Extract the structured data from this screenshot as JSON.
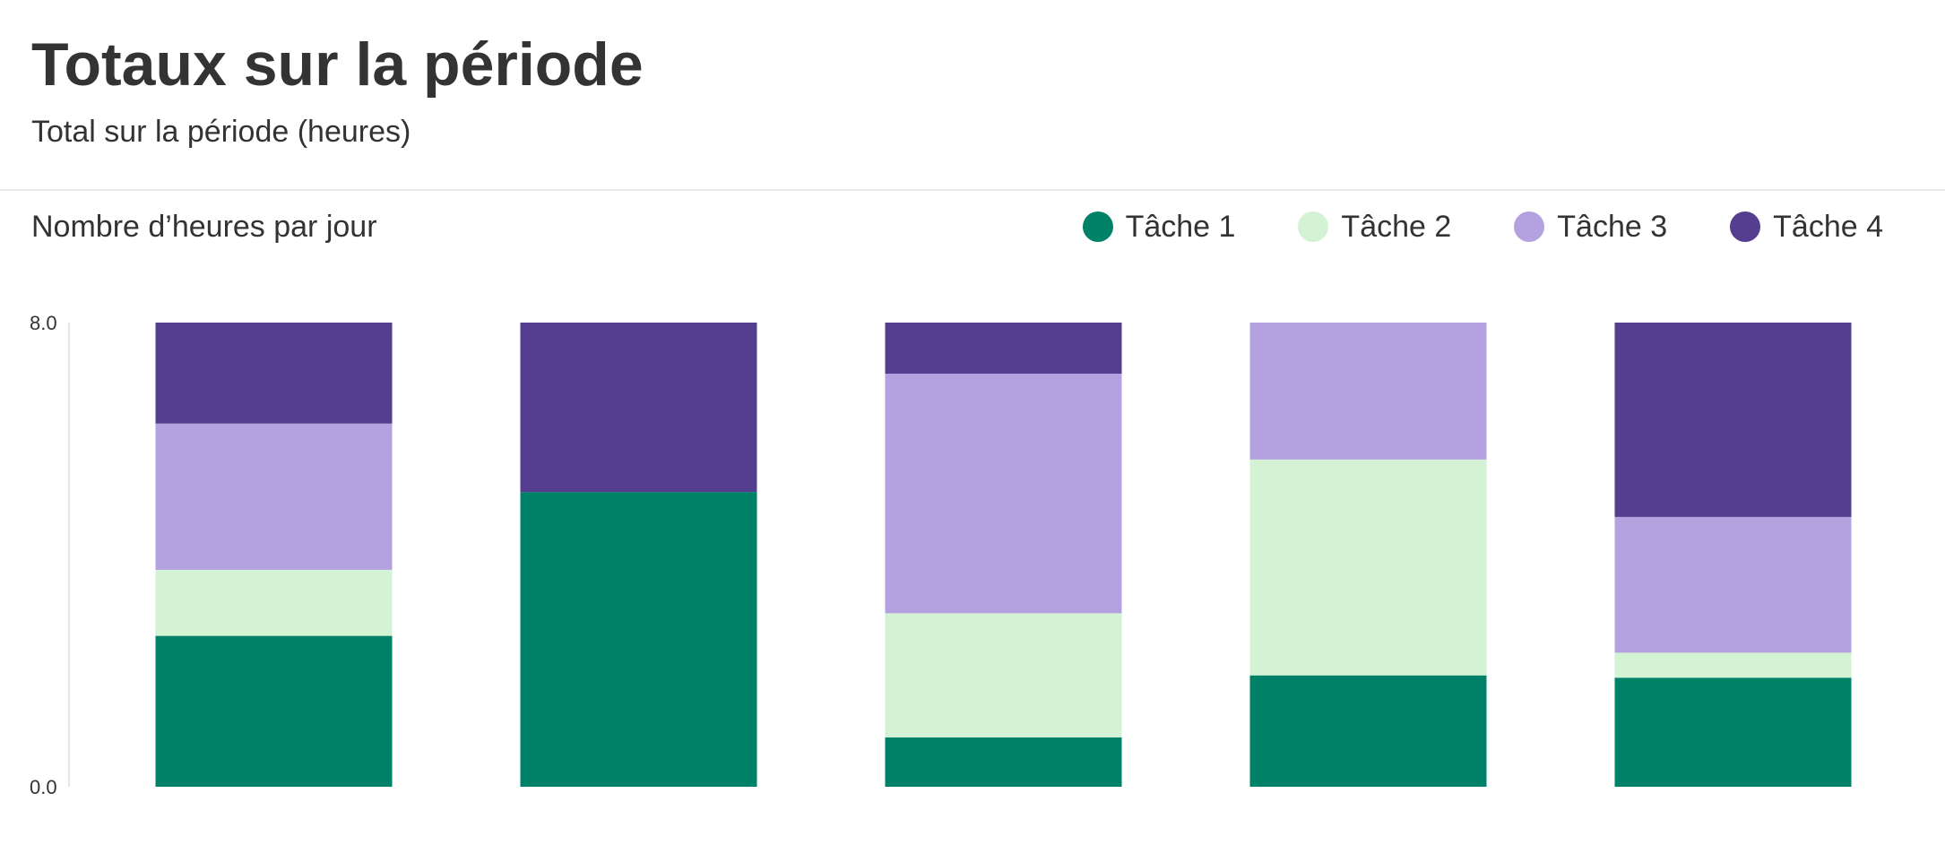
{
  "header": {
    "title": "Totaux sur la période",
    "subtitle": "Total sur la période (heures)"
  },
  "chart_data": {
    "type": "bar",
    "stacked": true,
    "title": "Nombre d’heures par jour",
    "xlabel": "",
    "ylabel": "",
    "ylim": [
      0,
      8
    ],
    "y_ticks": [
      "0.0",
      "8.0"
    ],
    "categories": [
      "",
      "",
      "",
      "",
      ""
    ],
    "grid": false,
    "legend_position": "top-right",
    "series": [
      {
        "name": "Tâche 1",
        "color": "#008268",
        "values": [
          2.6,
          5.08,
          0.85,
          1.92,
          1.88
        ]
      },
      {
        "name": "Tâche 2",
        "color": "#d4f2d4",
        "values": [
          1.14,
          0,
          2.14,
          3.72,
          0.43
        ]
      },
      {
        "name": "Tâche 3",
        "color": "#b4a1df",
        "values": [
          2.52,
          0,
          4.13,
          2.36,
          2.34
        ]
      },
      {
        "name": "Tâche 4",
        "color": "#553e8f",
        "values": [
          1.74,
          2.92,
          0.88,
          0,
          3.35
        ]
      }
    ]
  }
}
